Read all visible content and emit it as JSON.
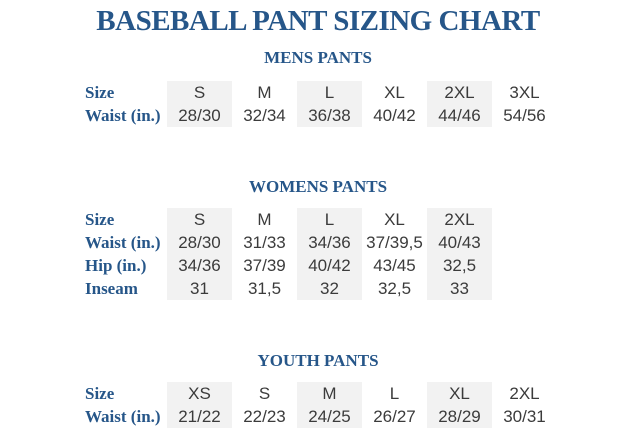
{
  "title": "BASEBALL PANT SIZING CHART",
  "colors": {
    "heading_blue": "#265689",
    "data_text": "#3b3b3b",
    "column_stripe": "#f2f2f2",
    "background": "#ffffff"
  },
  "sections": [
    {
      "id": "mens",
      "heading": "MENS PANTS",
      "striped_columns": [
        0,
        2,
        4
      ],
      "rows": [
        {
          "label": "Size",
          "values": [
            "S",
            "M",
            "L",
            "XL",
            "2XL",
            "3XL"
          ]
        },
        {
          "label": "Waist (in.)",
          "values": [
            "28/30",
            "32/34",
            "36/38",
            "40/42",
            "44/46",
            "54/56"
          ]
        }
      ]
    },
    {
      "id": "womens",
      "heading": "WOMENS PANTS",
      "striped_columns": [
        0,
        2,
        4
      ],
      "rows": [
        {
          "label": "Size",
          "values": [
            "S",
            "M",
            "L",
            "XL",
            "2XL"
          ]
        },
        {
          "label": "Waist (in.)",
          "values": [
            "28/30",
            "31/33",
            "34/36",
            "37/39,5",
            "40/43"
          ]
        },
        {
          "label": "Hip (in.)",
          "values": [
            "34/36",
            "37/39",
            "40/42",
            "43/45",
            "32,5"
          ]
        },
        {
          "label": "Inseam",
          "values": [
            "31",
            "31,5",
            "32",
            "32,5",
            "33"
          ]
        }
      ]
    },
    {
      "id": "youth",
      "heading": "YOUTH PANTS",
      "striped_columns": [
        0,
        2,
        4
      ],
      "rows": [
        {
          "label": "Size",
          "values": [
            "XS",
            "S",
            "M",
            "L",
            "XL",
            "2XL"
          ]
        },
        {
          "label": "Waist (in.)",
          "values": [
            "21/22",
            "22/23",
            "24/25",
            "26/27",
            "28/29",
            "30/31"
          ]
        }
      ]
    }
  ],
  "chart_data": [
    {
      "type": "table",
      "title": "MENS PANTS",
      "columns": [
        "Size",
        "S",
        "M",
        "L",
        "XL",
        "2XL",
        "3XL"
      ],
      "rows": [
        [
          "Waist (in.)",
          "28/30",
          "32/34",
          "36/38",
          "40/42",
          "44/46",
          "54/56"
        ]
      ]
    },
    {
      "type": "table",
      "title": "WOMENS PANTS",
      "columns": [
        "Size",
        "S",
        "M",
        "L",
        "XL",
        "2XL"
      ],
      "rows": [
        [
          "Waist (in.)",
          "28/30",
          "31/33",
          "34/36",
          "37/39,5",
          "40/43"
        ],
        [
          "Hip (in.)",
          "34/36",
          "37/39",
          "40/42",
          "43/45",
          "32,5"
        ],
        [
          "Inseam",
          "31",
          "31,5",
          "32",
          "32,5",
          "33"
        ]
      ]
    },
    {
      "type": "table",
      "title": "YOUTH PANTS",
      "columns": [
        "Size",
        "XS",
        "S",
        "M",
        "L",
        "XL",
        "2XL"
      ],
      "rows": [
        [
          "Waist (in.)",
          "21/22",
          "22/23",
          "24/25",
          "26/27",
          "28/29",
          "30/31"
        ]
      ]
    }
  ]
}
